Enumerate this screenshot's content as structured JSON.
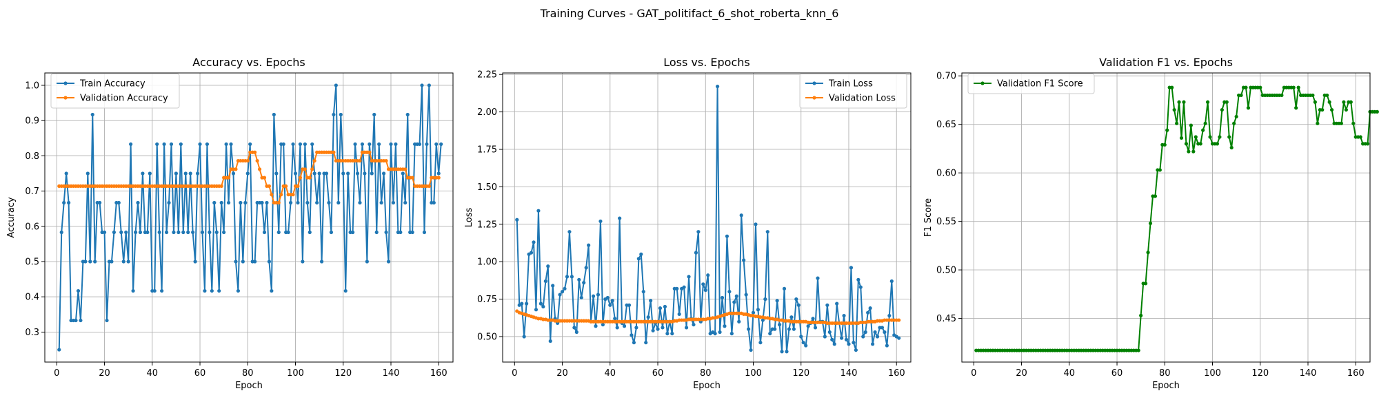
{
  "suptitle": "Training Curves - GAT_politifact_6_shot_roberta_knn_6",
  "chart_data": [
    {
      "type": "line",
      "title": "Accuracy vs. Epochs",
      "xlabel": "Epoch",
      "ylabel": "Accuracy",
      "xlim": [
        -5,
        166
      ],
      "ylim": [
        0.215,
        1.035
      ],
      "xticks": [
        0,
        20,
        40,
        60,
        80,
        100,
        120,
        140,
        160
      ],
      "yticks": [
        0.3,
        0.4,
        0.5,
        0.6,
        0.7,
        0.8,
        0.9,
        1.0
      ],
      "ytick_labels": [
        "0.3",
        "0.4",
        "0.5",
        "0.6",
        "0.7",
        "0.8",
        "0.9",
        "1.0"
      ],
      "grid": true,
      "legend_position": "upper-left",
      "series": [
        {
          "name": "Train Accuracy",
          "color": "#1f77b4",
          "x_start": 1,
          "values": [
            0.25,
            0.583,
            0.667,
            0.75,
            0.667,
            0.333,
            0.333,
            0.333,
            0.417,
            0.333,
            0.5,
            0.5,
            0.75,
            0.5,
            0.917,
            0.5,
            0.667,
            0.667,
            0.583,
            0.583,
            0.333,
            0.5,
            0.5,
            0.583,
            0.667,
            0.667,
            0.583,
            0.5,
            0.583,
            0.5,
            0.833,
            0.417,
            0.583,
            0.667,
            0.583,
            0.75,
            0.583,
            0.583,
            0.75,
            0.417,
            0.417,
            0.833,
            0.583,
            0.417,
            0.833,
            0.583,
            0.667,
            0.833,
            0.583,
            0.75,
            0.583,
            0.833,
            0.583,
            0.75,
            0.583,
            0.75,
            0.583,
            0.5,
            0.75,
            0.833,
            0.583,
            0.417,
            0.833,
            0.583,
            0.417,
            0.667,
            0.583,
            0.417,
            0.667,
            0.583,
            0.833,
            0.667,
            0.833,
            0.75,
            0.5,
            0.417,
            0.667,
            0.5,
            0.667,
            0.75,
            0.833,
            0.5,
            0.5,
            0.667,
            0.667,
            0.667,
            0.583,
            0.667,
            0.5,
            0.417,
            0.917,
            0.75,
            0.583,
            0.833,
            0.833,
            0.583,
            0.583,
            0.667,
            0.833,
            0.75,
            0.667,
            0.833,
            0.5,
            0.833,
            0.667,
            0.583,
            0.833,
            0.75,
            0.667,
            0.75,
            0.5,
            0.75,
            0.75,
            0.667,
            0.583,
            0.917,
            1.0,
            0.667,
            0.917,
            0.75,
            0.417,
            0.75,
            0.583,
            0.583,
            0.833,
            0.75,
            0.667,
            0.833,
            0.75,
            0.5,
            0.833,
            0.75,
            0.917,
            0.583,
            0.833,
            0.667,
            0.75,
            0.583,
            0.5,
            0.833,
            0.667,
            0.833,
            0.583,
            0.583,
            0.75,
            0.667,
            0.917,
            0.583,
            0.583,
            0.833,
            0.833,
            0.833,
            1.0,
            0.583,
            0.833,
            1.0,
            0.667,
            0.667,
            0.833,
            0.75,
            0.833
          ]
        },
        {
          "name": "Validation Accuracy",
          "color": "#ff7f0e",
          "x_start": 1,
          "values": [
            0.714,
            0.714,
            0.714,
            0.714,
            0.714,
            0.714,
            0.714,
            0.714,
            0.714,
            0.714,
            0.714,
            0.714,
            0.714,
            0.714,
            0.714,
            0.714,
            0.714,
            0.714,
            0.714,
            0.714,
            0.714,
            0.714,
            0.714,
            0.714,
            0.714,
            0.714,
            0.714,
            0.714,
            0.714,
            0.714,
            0.714,
            0.714,
            0.714,
            0.714,
            0.714,
            0.714,
            0.714,
            0.714,
            0.714,
            0.714,
            0.714,
            0.714,
            0.714,
            0.714,
            0.714,
            0.714,
            0.714,
            0.714,
            0.714,
            0.714,
            0.714,
            0.714,
            0.714,
            0.714,
            0.714,
            0.714,
            0.714,
            0.714,
            0.714,
            0.714,
            0.714,
            0.714,
            0.714,
            0.714,
            0.714,
            0.714,
            0.714,
            0.714,
            0.714,
            0.738,
            0.738,
            0.738,
            0.762,
            0.762,
            0.762,
            0.786,
            0.786,
            0.786,
            0.786,
            0.786,
            0.81,
            0.81,
            0.81,
            0.786,
            0.762,
            0.738,
            0.738,
            0.714,
            0.714,
            0.69,
            0.667,
            0.667,
            0.667,
            0.69,
            0.714,
            0.714,
            0.69,
            0.69,
            0.69,
            0.714,
            0.714,
            0.738,
            0.762,
            0.762,
            0.738,
            0.738,
            0.762,
            0.786,
            0.81,
            0.81,
            0.81,
            0.81,
            0.81,
            0.81,
            0.81,
            0.81,
            0.786,
            0.786,
            0.786,
            0.786,
            0.786,
            0.786,
            0.786,
            0.786,
            0.786,
            0.786,
            0.786,
            0.81,
            0.81,
            0.81,
            0.81,
            0.786,
            0.786,
            0.786,
            0.786,
            0.786,
            0.786,
            0.786,
            0.762,
            0.762,
            0.762,
            0.762,
            0.762,
            0.762,
            0.762,
            0.762,
            0.738,
            0.738,
            0.738,
            0.714,
            0.714,
            0.714,
            0.714,
            0.714,
            0.714,
            0.714,
            0.738,
            0.738,
            0.738,
            0.738
          ]
        }
      ]
    },
    {
      "type": "line",
      "title": "Loss vs. Epochs",
      "xlabel": "Epoch",
      "ylabel": "Loss",
      "xlim": [
        -5,
        166
      ],
      "ylim": [
        0.33,
        2.26
      ],
      "xticks": [
        0,
        20,
        40,
        60,
        80,
        100,
        120,
        140,
        160
      ],
      "yticks": [
        0.5,
        0.75,
        1.0,
        1.25,
        1.5,
        1.75,
        2.0,
        2.25
      ],
      "ytick_labels": [
        "0.50",
        "0.75",
        "1.00",
        "1.25",
        "1.50",
        "1.75",
        "2.00",
        "2.25"
      ],
      "grid": true,
      "legend_position": "upper-right",
      "series": [
        {
          "name": "Train Loss",
          "color": "#1f77b4",
          "x_start": 1,
          "values": [
            1.28,
            0.71,
            0.72,
            0.5,
            0.72,
            1.05,
            1.06,
            1.13,
            0.68,
            1.34,
            0.72,
            0.7,
            0.87,
            0.97,
            0.47,
            0.84,
            0.62,
            0.59,
            0.78,
            0.8,
            0.82,
            0.9,
            1.2,
            0.9,
            0.56,
            0.53,
            0.88,
            0.76,
            0.86,
            0.96,
            1.11,
            0.6,
            0.77,
            0.57,
            0.78,
            1.27,
            0.58,
            0.75,
            0.76,
            0.71,
            0.74,
            0.62,
            0.56,
            1.29,
            0.59,
            0.57,
            0.71,
            0.71,
            0.51,
            0.46,
            0.56,
            1.02,
            1.05,
            0.8,
            0.46,
            0.63,
            0.74,
            0.54,
            0.59,
            0.55,
            0.69,
            0.56,
            0.7,
            0.52,
            0.6,
            0.52,
            0.82,
            0.82,
            0.65,
            0.82,
            0.83,
            0.56,
            0.9,
            0.62,
            0.58,
            1.06,
            1.2,
            0.6,
            0.85,
            0.81,
            0.91,
            0.52,
            0.53,
            0.52,
            2.17,
            0.53,
            0.76,
            0.57,
            1.17,
            0.8,
            0.52,
            0.73,
            0.77,
            0.6,
            1.31,
            1.01,
            0.78,
            0.55,
            0.41,
            0.66,
            1.25,
            0.68,
            0.46,
            0.61,
            0.75,
            1.2,
            0.52,
            0.55,
            0.55,
            0.74,
            0.58,
            0.4,
            0.82,
            0.4,
            0.55,
            0.63,
            0.55,
            0.75,
            0.71,
            0.5,
            0.46,
            0.44,
            0.57,
            0.59,
            0.62,
            0.56,
            0.89,
            0.6,
            0.6,
            0.5,
            0.71,
            0.53,
            0.48,
            0.45,
            0.72,
            0.59,
            0.49,
            0.64,
            0.48,
            0.45,
            0.96,
            0.46,
            0.41,
            0.88,
            0.83,
            0.5,
            0.53,
            0.66,
            0.69,
            0.45,
            0.53,
            0.5,
            0.56,
            0.56,
            0.53,
            0.44,
            0.64,
            0.87,
            0.51,
            0.5,
            0.49
          ]
        },
        {
          "name": "Validation Loss",
          "color": "#ff7f0e",
          "x_start": 1,
          "values": [
            0.67,
            0.66,
            0.655,
            0.65,
            0.645,
            0.64,
            0.635,
            0.63,
            0.625,
            0.62,
            0.62,
            0.615,
            0.615,
            0.61,
            0.61,
            0.61,
            0.605,
            0.605,
            0.605,
            0.605,
            0.605,
            0.605,
            0.605,
            0.605,
            0.605,
            0.605,
            0.605,
            0.605,
            0.605,
            0.605,
            0.605,
            0.6,
            0.6,
            0.6,
            0.6,
            0.6,
            0.6,
            0.6,
            0.6,
            0.6,
            0.6,
            0.6,
            0.6,
            0.6,
            0.6,
            0.6,
            0.6,
            0.6,
            0.6,
            0.6,
            0.6,
            0.6,
            0.6,
            0.6,
            0.6,
            0.6,
            0.6,
            0.6,
            0.6,
            0.6,
            0.6,
            0.6,
            0.6,
            0.6,
            0.6,
            0.6,
            0.605,
            0.605,
            0.61,
            0.61,
            0.61,
            0.61,
            0.615,
            0.615,
            0.615,
            0.615,
            0.615,
            0.615,
            0.615,
            0.615,
            0.62,
            0.62,
            0.625,
            0.625,
            0.63,
            0.635,
            0.64,
            0.645,
            0.65,
            0.655,
            0.655,
            0.655,
            0.655,
            0.655,
            0.655,
            0.65,
            0.65,
            0.645,
            0.64,
            0.64,
            0.635,
            0.635,
            0.63,
            0.63,
            0.625,
            0.625,
            0.62,
            0.62,
            0.615,
            0.615,
            0.61,
            0.61,
            0.605,
            0.605,
            0.605,
            0.6,
            0.6,
            0.6,
            0.6,
            0.6,
            0.6,
            0.6,
            0.595,
            0.595,
            0.595,
            0.595,
            0.595,
            0.595,
            0.595,
            0.595,
            0.59,
            0.59,
            0.59,
            0.59,
            0.59,
            0.59,
            0.59,
            0.59,
            0.59,
            0.59,
            0.59,
            0.59,
            0.59,
            0.59,
            0.595,
            0.595,
            0.595,
            0.6,
            0.6,
            0.6,
            0.6,
            0.605,
            0.605,
            0.605,
            0.61,
            0.61,
            0.61,
            0.61,
            0.61,
            0.61,
            0.61
          ]
        }
      ]
    },
    {
      "type": "line",
      "title": "Validation F1 vs. Epochs",
      "xlabel": "Epoch",
      "ylabel": "F1 Score",
      "xlim": [
        -5,
        166
      ],
      "ylim": [
        0.405,
        0.703
      ],
      "xticks": [
        0,
        20,
        40,
        60,
        80,
        100,
        120,
        140,
        160
      ],
      "yticks": [
        0.45,
        0.5,
        0.55,
        0.6,
        0.65,
        0.7
      ],
      "ytick_labels": [
        "0.45",
        "0.50",
        "0.55",
        "0.60",
        "0.65",
        "0.70"
      ],
      "grid": true,
      "legend_position": "upper-left",
      "series": [
        {
          "name": "Validation F1 Score",
          "color": "#008000",
          "x_start": 1,
          "values": [
            0.417,
            0.417,
            0.417,
            0.417,
            0.417,
            0.417,
            0.417,
            0.417,
            0.417,
            0.417,
            0.417,
            0.417,
            0.417,
            0.417,
            0.417,
            0.417,
            0.417,
            0.417,
            0.417,
            0.417,
            0.417,
            0.417,
            0.417,
            0.417,
            0.417,
            0.417,
            0.417,
            0.417,
            0.417,
            0.417,
            0.417,
            0.417,
            0.417,
            0.417,
            0.417,
            0.417,
            0.417,
            0.417,
            0.417,
            0.417,
            0.417,
            0.417,
            0.417,
            0.417,
            0.417,
            0.417,
            0.417,
            0.417,
            0.417,
            0.417,
            0.417,
            0.417,
            0.417,
            0.417,
            0.417,
            0.417,
            0.417,
            0.417,
            0.417,
            0.417,
            0.417,
            0.417,
            0.417,
            0.417,
            0.417,
            0.417,
            0.417,
            0.417,
            0.417,
            0.453,
            0.486,
            0.486,
            0.518,
            0.548,
            0.576,
            0.576,
            0.603,
            0.603,
            0.629,
            0.629,
            0.644,
            0.688,
            0.688,
            0.665,
            0.651,
            0.673,
            0.636,
            0.673,
            0.63,
            0.622,
            0.649,
            0.622,
            0.637,
            0.63,
            0.63,
            0.644,
            0.651,
            0.673,
            0.637,
            0.63,
            0.63,
            0.63,
            0.637,
            0.665,
            0.673,
            0.673,
            0.637,
            0.626,
            0.651,
            0.658,
            0.68,
            0.68,
            0.688,
            0.688,
            0.667,
            0.688,
            0.688,
            0.688,
            0.688,
            0.688,
            0.68,
            0.68,
            0.68,
            0.68,
            0.68,
            0.68,
            0.68,
            0.68,
            0.68,
            0.688,
            0.688,
            0.688,
            0.688,
            0.688,
            0.667,
            0.688,
            0.68,
            0.68,
            0.68,
            0.68,
            0.68,
            0.68,
            0.673,
            0.651,
            0.665,
            0.665,
            0.68,
            0.68,
            0.673,
            0.665,
            0.651,
            0.651,
            0.651,
            0.651,
            0.673,
            0.665,
            0.673,
            0.673,
            0.651,
            0.637,
            0.637,
            0.637,
            0.63,
            0.63,
            0.63,
            0.663,
            0.663,
            0.663,
            0.663
          ]
        }
      ]
    }
  ]
}
